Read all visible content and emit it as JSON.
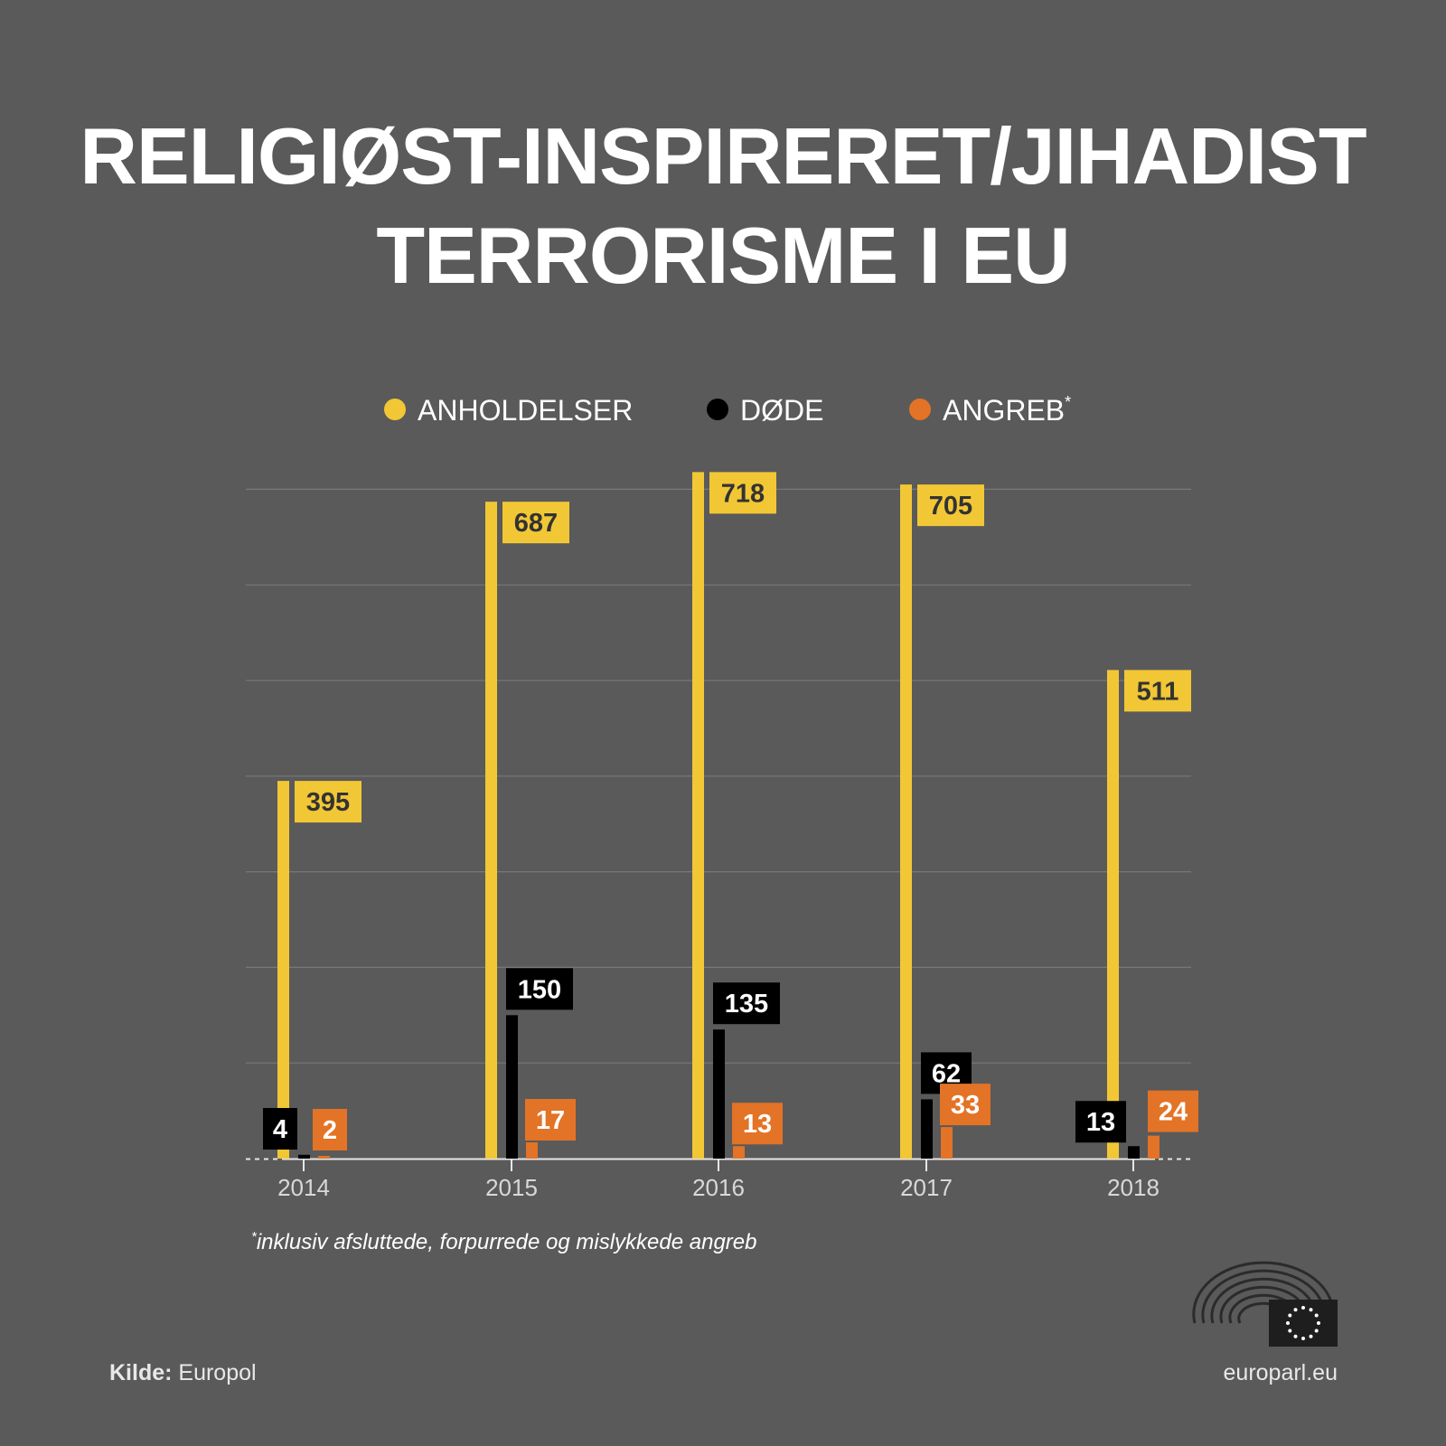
{
  "title": {
    "line1": "RELIGIØST-INSPIRERET/JIHADIST",
    "line2": "TERRORISME I EU"
  },
  "legend": [
    {
      "label": "ANHOLDELSER",
      "marker": "",
      "color": "#f2c735"
    },
    {
      "label": "DØDE",
      "marker": "",
      "color": "#000000"
    },
    {
      "label": "ANGREB",
      "marker": "*",
      "color": "#e37326"
    }
  ],
  "chart_data": {
    "type": "bar",
    "categories": [
      "2014",
      "2015",
      "2016",
      "2017",
      "2018"
    ],
    "series": [
      {
        "name": "ANHOLDELSER",
        "color": "#f2c735",
        "values": [
          395,
          687,
          718,
          705,
          511
        ]
      },
      {
        "name": "DØDE",
        "color": "#000000",
        "values": [
          4,
          150,
          135,
          62,
          13
        ]
      },
      {
        "name": "ANGREB*",
        "color": "#e37326",
        "values": [
          2,
          17,
          13,
          33,
          24
        ]
      }
    ],
    "ylim": [
      0,
      700
    ],
    "grid": true,
    "legend_position": "top"
  },
  "footnote": {
    "marker": "*",
    "text": "inklusiv afsluttede, forpurrede og mislykkede angreb"
  },
  "source": {
    "label": "Kilde:",
    "value": "Europol"
  },
  "site": "europarl.eu",
  "colors": {
    "background": "#5a5a5a",
    "yellow": "#f2c735",
    "orange": "#e37326",
    "grid": "#787878"
  }
}
